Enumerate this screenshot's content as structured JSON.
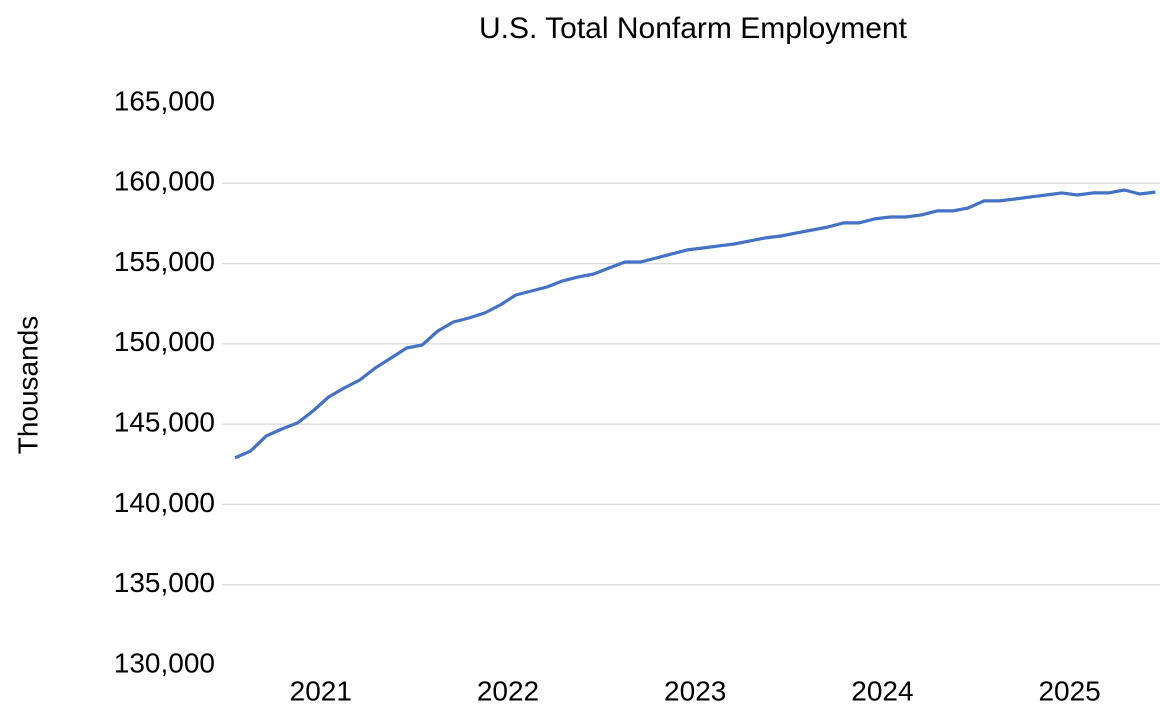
{
  "chart_data": {
    "type": "line",
    "title": "U.S. Total Nonfarm Employment",
    "y_label": "Thousands",
    "categories": [
      null,
      null,
      null,
      null,
      null,
      "2021",
      null,
      null,
      null,
      null,
      null,
      null,
      null,
      null,
      null,
      null,
      null,
      "2022",
      null,
      null,
      null,
      null,
      null,
      null,
      null,
      null,
      null,
      null,
      null,
      "2023",
      null,
      null,
      null,
      null,
      null,
      null,
      null,
      null,
      null,
      null,
      null,
      "2024",
      null,
      null,
      null,
      null,
      null,
      null,
      null,
      null,
      null,
      null,
      null,
      "2025",
      null,
      null,
      null,
      null,
      null,
      null
    ],
    "series": [
      {
        "name": "Total Nonfarm",
        "color": "#4472c4",
        "values": [
          142900,
          143330,
          144260,
          144700,
          145070,
          145820,
          146690,
          147250,
          147750,
          148500,
          149120,
          149740,
          149930,
          150800,
          151360,
          151610,
          151920,
          152420,
          153040,
          153290,
          153540,
          153920,
          154170,
          154350,
          154730,
          155100,
          155100,
          155350,
          155600,
          155850,
          155970,
          156100,
          156220,
          156410,
          156600,
          156720,
          156910,
          157090,
          157280,
          157530,
          157530,
          157780,
          157900,
          157900,
          158030,
          158280,
          158280,
          158460,
          158900,
          158900,
          159020,
          159150,
          159270,
          159400,
          159270,
          159400,
          159400,
          159580,
          159330,
          159460
        ]
      }
    ],
    "ylim": [
      130000,
      165000
    ],
    "yticks": [
      {
        "value": 130000,
        "label": "130,000"
      },
      {
        "value": 135000,
        "label": "135,000"
      },
      {
        "value": 140000,
        "label": "140,000"
      },
      {
        "value": 145000,
        "label": "145,000"
      },
      {
        "value": 150000,
        "label": "150,000"
      },
      {
        "value": 155000,
        "label": "155,000"
      },
      {
        "value": 160000,
        "label": "160,000"
      },
      {
        "value": 165000,
        "label": "165,000"
      }
    ],
    "grid": true
  }
}
